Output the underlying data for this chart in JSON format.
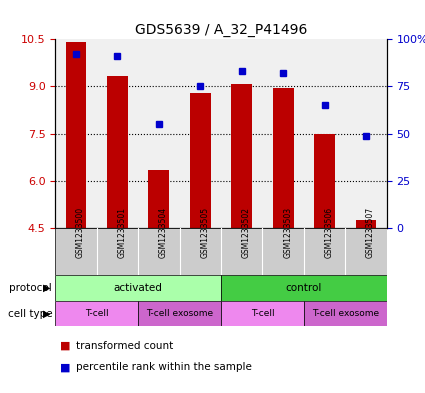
{
  "title": "GDS5639 / A_32_P41496",
  "samples": [
    "GSM1233500",
    "GSM1233501",
    "GSM1233504",
    "GSM1233505",
    "GSM1233502",
    "GSM1233503",
    "GSM1233506",
    "GSM1233507"
  ],
  "transformed_count": [
    10.42,
    9.32,
    6.35,
    8.78,
    9.08,
    8.95,
    7.48,
    4.75
  ],
  "percentile_rank": [
    92,
    91,
    55,
    75,
    83,
    82,
    65,
    49
  ],
  "ylim_left": [
    4.5,
    10.5
  ],
  "ylim_right": [
    0,
    100
  ],
  "yticks_left": [
    4.5,
    6.0,
    7.5,
    9.0,
    10.5
  ],
  "yticks_right": [
    0,
    25,
    50,
    75,
    100
  ],
  "bar_color": "#bb0000",
  "dot_color": "#0000cc",
  "bar_width": 0.5,
  "protocol_groups": [
    {
      "label": "activated",
      "start": 0,
      "end": 4,
      "color": "#aaffaa"
    },
    {
      "label": "control",
      "start": 4,
      "end": 8,
      "color": "#44cc44"
    }
  ],
  "cell_type_groups": [
    {
      "label": "T-cell",
      "start": 0,
      "end": 2,
      "color": "#ee88ee"
    },
    {
      "label": "T-cell exosome",
      "start": 2,
      "end": 4,
      "color": "#cc66cc"
    },
    {
      "label": "T-cell",
      "start": 4,
      "end": 6,
      "color": "#ee88ee"
    },
    {
      "label": "T-cell exosome",
      "start": 6,
      "end": 8,
      "color": "#cc66cc"
    }
  ],
  "legend_items": [
    {
      "label": "transformed count",
      "color": "#bb0000",
      "marker": "s"
    },
    {
      "label": "percentile rank within the sample",
      "color": "#0000cc",
      "marker": "s"
    }
  ],
  "background_color": "#ffffff",
  "grid_color": "#333333",
  "base_value": 4.5
}
